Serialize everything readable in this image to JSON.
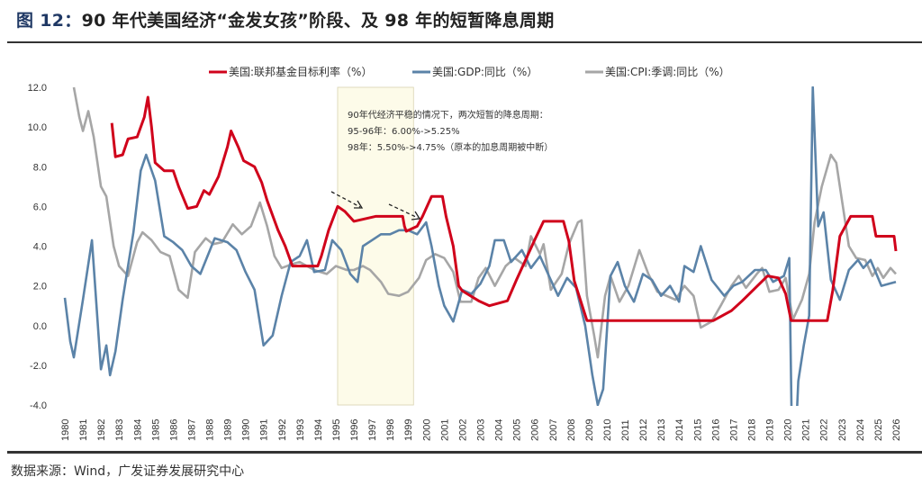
{
  "title": {
    "prefix": "图 12：",
    "text": "90 年代美国经济“金发女孩”阶段、及 98 年的短暂降息周期"
  },
  "source": "数据来源：Wind，广发证券发展研究中心",
  "chart_data": {
    "type": "line",
    "title": "",
    "xlabel": "",
    "ylabel": "",
    "xlim": [
      1980,
      2026
    ],
    "ylim": [
      -4,
      12
    ],
    "yticks": [
      "12.0",
      "10.0",
      "8.0",
      "6.0",
      "4.0",
      "2.0",
      "0.0",
      "-2.0",
      "-4.0"
    ],
    "xticks": [
      "1980",
      "1981",
      "1982",
      "1983",
      "1984",
      "1985",
      "1986",
      "1987",
      "1988",
      "1989",
      "1990",
      "1991",
      "1992",
      "1993",
      "1994",
      "1995",
      "1996",
      "1997",
      "1998",
      "1999",
      "2000",
      "2001",
      "2002",
      "2003",
      "2004",
      "2005",
      "2006",
      "2007",
      "2008",
      "2009",
      "2010",
      "2011",
      "2012",
      "2013",
      "2014",
      "2015",
      "2016",
      "2017",
      "2018",
      "2019",
      "2020",
      "2021",
      "2022",
      "2023",
      "2024",
      "2025",
      "2026"
    ],
    "grid": false,
    "legend_position": "top",
    "highlight_range": [
      1995.1,
      1999.3
    ],
    "highlight_color": "#fdfbe9",
    "annotation": {
      "lines": [
        "90年代经济平稳的情况下，两次短暂的降息周期：",
        "95-96年：6.00%->5.25%",
        "98年：5.50%->4.75%（原本的加息周期被中断）"
      ]
    },
    "series": [
      {
        "name": "美国:联邦基金目标利率（%）",
        "color": "#d0021b",
        "points": [
          [
            1982.6,
            10.2
          ],
          [
            1982.8,
            8.5
          ],
          [
            1983.2,
            8.6
          ],
          [
            1983.5,
            9.4
          ],
          [
            1984,
            9.5
          ],
          [
            1984.4,
            10.5
          ],
          [
            1984.6,
            11.5
          ],
          [
            1984.8,
            10
          ],
          [
            1985,
            8.2
          ],
          [
            1985.5,
            7.8
          ],
          [
            1986,
            7.8
          ],
          [
            1986.3,
            7.0
          ],
          [
            1986.8,
            5.9
          ],
          [
            1987.3,
            6.0
          ],
          [
            1987.7,
            6.8
          ],
          [
            1988,
            6.6
          ],
          [
            1988.5,
            7.5
          ],
          [
            1989,
            9.0
          ],
          [
            1989.2,
            9.8
          ],
          [
            1989.6,
            9.0
          ],
          [
            1989.9,
            8.3
          ],
          [
            1990.5,
            8.0
          ],
          [
            1990.9,
            7.2
          ],
          [
            1991.2,
            6.3
          ],
          [
            1991.8,
            4.8
          ],
          [
            1992.2,
            4.0
          ],
          [
            1992.6,
            3.0
          ],
          [
            1994,
            3.0
          ],
          [
            1994.2,
            3.5
          ],
          [
            1994.6,
            4.8
          ],
          [
            1995.1,
            6.0
          ],
          [
            1995.5,
            5.75
          ],
          [
            1996,
            5.25
          ],
          [
            1997.2,
            5.5
          ],
          [
            1998.7,
            5.5
          ],
          [
            1998.8,
            5.0
          ],
          [
            1998.9,
            4.75
          ],
          [
            1999.5,
            5.0
          ],
          [
            1999.8,
            5.5
          ],
          [
            2000.3,
            6.5
          ],
          [
            2000.9,
            6.5
          ],
          [
            2001.1,
            5.5
          ],
          [
            2001.5,
            4.0
          ],
          [
            2001.8,
            2.0
          ],
          [
            2002,
            1.75
          ],
          [
            2002.9,
            1.25
          ],
          [
            2003.5,
            1.0
          ],
          [
            2004.5,
            1.25
          ],
          [
            2005,
            2.3
          ],
          [
            2005.5,
            3.3
          ],
          [
            2006,
            4.3
          ],
          [
            2006.5,
            5.25
          ],
          [
            2007.6,
            5.25
          ],
          [
            2007.9,
            4.25
          ],
          [
            2008.2,
            2.25
          ],
          [
            2008.9,
            0.25
          ],
          [
            2015.9,
            0.25
          ],
          [
            2016.9,
            0.75
          ],
          [
            2017.5,
            1.25
          ],
          [
            2018.9,
            2.5
          ],
          [
            2019.5,
            2.4
          ],
          [
            2019.9,
            1.6
          ],
          [
            2020.2,
            0.25
          ],
          [
            2022.2,
            0.25
          ],
          [
            2022.5,
            1.75
          ],
          [
            2022.9,
            4.5
          ],
          [
            2023.5,
            5.5
          ],
          [
            2024.7,
            5.5
          ],
          [
            2024.9,
            4.5
          ],
          [
            2025.9,
            4.5
          ],
          [
            2026,
            3.75
          ]
        ]
      },
      {
        "name": "美国:GDP:同比（%）",
        "color": "#5b83a8",
        "points": [
          [
            1980,
            1.4
          ],
          [
            1980.3,
            -0.8
          ],
          [
            1980.5,
            -1.6
          ],
          [
            1981,
            1.3
          ],
          [
            1981.5,
            4.3
          ],
          [
            1982,
            -2.2
          ],
          [
            1982.3,
            -1
          ],
          [
            1982.5,
            -2.5
          ],
          [
            1982.8,
            -1.3
          ],
          [
            1983.2,
            1.3
          ],
          [
            1983.8,
            4.7
          ],
          [
            1984.2,
            7.8
          ],
          [
            1984.5,
            8.6
          ],
          [
            1985,
            7.3
          ],
          [
            1985.5,
            4.5
          ],
          [
            1986,
            4.2
          ],
          [
            1986.5,
            3.8
          ],
          [
            1987,
            3.0
          ],
          [
            1987.5,
            2.6
          ],
          [
            1987.9,
            3.5
          ],
          [
            1988.3,
            4.4
          ],
          [
            1989,
            4.2
          ],
          [
            1989.5,
            3.8
          ],
          [
            1990,
            2.7
          ],
          [
            1990.5,
            1.8
          ],
          [
            1991,
            -1.0
          ],
          [
            1991.5,
            -0.5
          ],
          [
            1992,
            1.5
          ],
          [
            1992.5,
            3.2
          ],
          [
            1993,
            3.5
          ],
          [
            1993.4,
            4.3
          ],
          [
            1993.8,
            2.7
          ],
          [
            1994.4,
            2.8
          ],
          [
            1994.8,
            4.3
          ],
          [
            1995.3,
            3.8
          ],
          [
            1995.8,
            2.6
          ],
          [
            1996.2,
            2.2
          ],
          [
            1996.5,
            4.0
          ],
          [
            1997,
            4.3
          ],
          [
            1997.5,
            4.6
          ],
          [
            1998,
            4.6
          ],
          [
            1998.5,
            4.8
          ],
          [
            1999,
            4.8
          ],
          [
            1999.5,
            4.6
          ],
          [
            2000,
            5.2
          ],
          [
            2000.3,
            4.0
          ],
          [
            2000.7,
            2.0
          ],
          [
            2001,
            1.0
          ],
          [
            2001.5,
            0.2
          ],
          [
            2002,
            1.8
          ],
          [
            2002.5,
            1.6
          ],
          [
            2003,
            2.1
          ],
          [
            2003.5,
            3.0
          ],
          [
            2003.8,
            4.3
          ],
          [
            2004.3,
            4.3
          ],
          [
            2004.7,
            3.2
          ],
          [
            2005.3,
            3.8
          ],
          [
            2005.8,
            2.9
          ],
          [
            2006.3,
            3.5
          ],
          [
            2006.8,
            2.5
          ],
          [
            2007.3,
            1.5
          ],
          [
            2007.8,
            2.4
          ],
          [
            2008.3,
            1.9
          ],
          [
            2008.8,
            0
          ],
          [
            2009.2,
            -2.5
          ],
          [
            2009.5,
            -4.0
          ],
          [
            2009.8,
            -3.2
          ],
          [
            2010.2,
            2.5
          ],
          [
            2010.6,
            3.2
          ],
          [
            2011,
            2.0
          ],
          [
            2011.5,
            1.2
          ],
          [
            2012,
            2.6
          ],
          [
            2012.5,
            2.3
          ],
          [
            2013,
            1.5
          ],
          [
            2013.5,
            2.0
          ],
          [
            2014,
            1.2
          ],
          [
            2014.3,
            3.0
          ],
          [
            2014.8,
            2.7
          ],
          [
            2015.2,
            4.0
          ],
          [
            2015.8,
            2.3
          ],
          [
            2016.5,
            1.5
          ],
          [
            2017,
            2.0
          ],
          [
            2017.5,
            2.2
          ],
          [
            2018.2,
            2.8
          ],
          [
            2018.8,
            2.8
          ],
          [
            2019.2,
            2.2
          ],
          [
            2019.8,
            2.5
          ],
          [
            2020.1,
            3.4
          ],
          [
            2020.3,
            -9
          ],
          [
            2020.6,
            -2.8
          ],
          [
            2020.9,
            -1.0
          ],
          [
            2021.2,
            0.5
          ],
          [
            2021.4,
            12.0
          ],
          [
            2021.7,
            5.0
          ],
          [
            2022,
            5.7
          ],
          [
            2022.4,
            2.3
          ],
          [
            2022.9,
            1.3
          ],
          [
            2023.4,
            2.8
          ],
          [
            2023.9,
            3.3
          ],
          [
            2024.2,
            2.9
          ],
          [
            2024.6,
            3.3
          ],
          [
            2025.2,
            2.0
          ],
          [
            2025.6,
            2.1
          ],
          [
            2026,
            2.2
          ]
        ]
      },
      {
        "name": "美国:CPI:季调:同比（%）",
        "color": "#a6a6a6",
        "points": [
          [
            1980.5,
            12.0
          ],
          [
            1980.8,
            10.5
          ],
          [
            1981,
            9.8
          ],
          [
            1981.3,
            10.8
          ],
          [
            1981.6,
            9.5
          ],
          [
            1982,
            7.0
          ],
          [
            1982.3,
            6.5
          ],
          [
            1982.7,
            4.0
          ],
          [
            1983,
            3.0
          ],
          [
            1983.5,
            2.5
          ],
          [
            1984,
            4.2
          ],
          [
            1984.3,
            4.7
          ],
          [
            1984.8,
            4.3
          ],
          [
            1985.3,
            3.7
          ],
          [
            1985.8,
            3.5
          ],
          [
            1986.3,
            1.8
          ],
          [
            1986.8,
            1.4
          ],
          [
            1987.2,
            3.7
          ],
          [
            1987.8,
            4.4
          ],
          [
            1988.2,
            4.1
          ],
          [
            1988.7,
            4.2
          ],
          [
            1989.3,
            5.1
          ],
          [
            1989.8,
            4.6
          ],
          [
            1990.3,
            5.0
          ],
          [
            1990.8,
            6.2
          ],
          [
            1991.2,
            5.0
          ],
          [
            1991.6,
            3.5
          ],
          [
            1992,
            2.9
          ],
          [
            1992.6,
            3.1
          ],
          [
            1993,
            3.2
          ],
          [
            1993.8,
            2.8
          ],
          [
            1994.5,
            2.6
          ],
          [
            1995,
            3.0
          ],
          [
            1995.6,
            2.8
          ],
          [
            1996,
            2.8
          ],
          [
            1996.5,
            3.0
          ],
          [
            1996.9,
            2.8
          ],
          [
            1997.5,
            2.2
          ],
          [
            1997.9,
            1.6
          ],
          [
            1998.5,
            1.5
          ],
          [
            1999,
            1.7
          ],
          [
            1999.6,
            2.4
          ],
          [
            2000,
            3.3
          ],
          [
            2000.5,
            3.6
          ],
          [
            2001,
            3.4
          ],
          [
            2001.5,
            2.7
          ],
          [
            2001.9,
            1.2
          ],
          [
            2002.5,
            1.2
          ],
          [
            2002.9,
            2.4
          ],
          [
            2003.3,
            2.9
          ],
          [
            2003.8,
            2.0
          ],
          [
            2004.4,
            3.0
          ],
          [
            2004.9,
            3.4
          ],
          [
            2005.5,
            3.0
          ],
          [
            2005.8,
            4.5
          ],
          [
            2006.3,
            3.6
          ],
          [
            2006.5,
            4.1
          ],
          [
            2006.9,
            1.8
          ],
          [
            2007.5,
            2.6
          ],
          [
            2007.9,
            4.1
          ],
          [
            2008.4,
            5.2
          ],
          [
            2008.6,
            5.3
          ],
          [
            2008.9,
            1.5
          ],
          [
            2009.3,
            -0.5
          ],
          [
            2009.5,
            -1.6
          ],
          [
            2009.9,
            1.5
          ],
          [
            2010.2,
            2.5
          ],
          [
            2010.7,
            1.2
          ],
          [
            2011.2,
            2.0
          ],
          [
            2011.8,
            3.8
          ],
          [
            2012.3,
            2.6
          ],
          [
            2012.8,
            1.7
          ],
          [
            2013.3,
            1.5
          ],
          [
            2013.8,
            1.3
          ],
          [
            2014.3,
            2.0
          ],
          [
            2014.8,
            1.5
          ],
          [
            2015.2,
            -0.1
          ],
          [
            2015.8,
            0.2
          ],
          [
            2016.3,
            1.0
          ],
          [
            2016.9,
            2.0
          ],
          [
            2017.3,
            2.5
          ],
          [
            2017.7,
            1.9
          ],
          [
            2018.3,
            2.6
          ],
          [
            2018.6,
            2.9
          ],
          [
            2019,
            1.7
          ],
          [
            2019.5,
            1.8
          ],
          [
            2019.9,
            2.4
          ],
          [
            2020.3,
            0.3
          ],
          [
            2020.8,
            1.3
          ],
          [
            2021.2,
            2.6
          ],
          [
            2021.5,
            5.2
          ],
          [
            2021.9,
            7.0
          ],
          [
            2022.4,
            8.6
          ],
          [
            2022.7,
            8.2
          ],
          [
            2023,
            6.4
          ],
          [
            2023.4,
            4.0
          ],
          [
            2023.8,
            3.4
          ],
          [
            2024.3,
            3.3
          ],
          [
            2024.7,
            2.5
          ],
          [
            2025,
            2.9
          ],
          [
            2025.3,
            2.4
          ],
          [
            2025.7,
            2.9
          ],
          [
            2026,
            2.6
          ]
        ]
      }
    ]
  }
}
